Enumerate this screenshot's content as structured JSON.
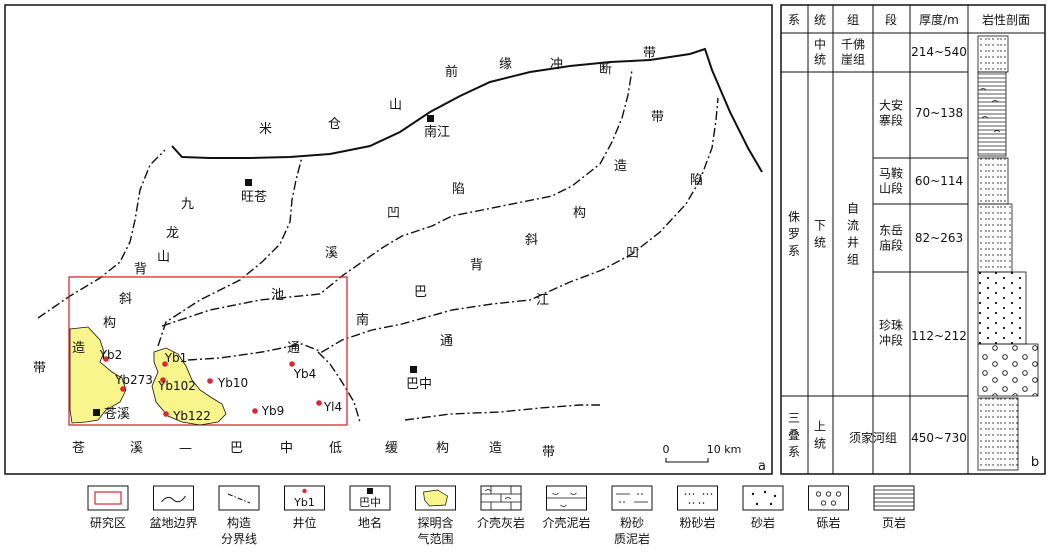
{
  "map": {
    "panel_letter": "a",
    "scale_zero": "0",
    "scale_label": "10 km",
    "towns": [
      "南江",
      "旺苍",
      "巴中",
      "苍溪"
    ],
    "region_chars": {
      "micang": [
        "米",
        "仓",
        "山",
        "前",
        "缘",
        "冲",
        "断",
        "带"
      ],
      "jiulong": [
        "九",
        "龙",
        "山",
        "背",
        "斜",
        "构",
        "造",
        "带"
      ],
      "tongnan": [
        "通",
        "南",
        "巴",
        "背",
        "斜",
        "构",
        "造"
      ],
      "chuanbei": [
        "陷",
        "凹",
        "溪",
        "池"
      ],
      "jiangdai": [
        "带",
        "陷",
        "凹",
        "江"
      ],
      "dibu": [
        "苍",
        "溪",
        "—",
        "巴",
        "中",
        "低",
        "缓",
        "构",
        "造",
        "带"
      ]
    },
    "wells": [
      "Yb2",
      "Yb273",
      "Yb1",
      "Yb102",
      "Yb10",
      "Yb122",
      "Yb9",
      "Yb4",
      "Yl4"
    ]
  },
  "column": {
    "panel_letter": "b",
    "headers": [
      "系",
      "统",
      "组",
      "段",
      "厚度/m",
      "岩性剖面"
    ],
    "rows": [
      {
        "system": "",
        "series": "中统",
        "formation": "千佛崖组",
        "member": "",
        "thickness": "214~540"
      },
      {
        "system": "侏罗系",
        "series": "下统",
        "formation": "自流井组",
        "member": "大安寨段",
        "thickness": "70~138"
      },
      {
        "system": "",
        "series": "",
        "formation": "",
        "member": "马鞍山段",
        "thickness": "60~114"
      },
      {
        "system": "",
        "series": "",
        "formation": "",
        "member": "东岳庙段",
        "thickness": "82~263"
      },
      {
        "system": "",
        "series": "",
        "formation": "",
        "member": "珍珠冲段",
        "thickness": "112~212"
      },
      {
        "system": "三叠系",
        "series": "上统",
        "formation": "须家河组",
        "member": "",
        "thickness": "450~730"
      }
    ]
  },
  "legend": {
    "items": [
      {
        "label": "研究区",
        "label2": ""
      },
      {
        "label": "盆地边界",
        "label2": ""
      },
      {
        "label": "构造",
        "label2": "分界线"
      },
      {
        "label": "井位",
        "label2": "",
        "sample": "Yb1"
      },
      {
        "label": "地名",
        "label2": "",
        "sample": "巴中"
      },
      {
        "label": "探明含",
        "label2": "气范围"
      },
      {
        "label": "介壳灰岩",
        "label2": ""
      },
      {
        "label": "介壳泥岩",
        "label2": ""
      },
      {
        "label": "粉砂",
        "label2": "质泥岩"
      },
      {
        "label": "粉砂岩",
        "label2": ""
      },
      {
        "label": "砂岩",
        "label2": ""
      },
      {
        "label": "砾岩",
        "label2": ""
      },
      {
        "label": "页岩",
        "label2": ""
      }
    ]
  },
  "colors": {
    "gas": "#f7f58c",
    "study_area": "#d9282f",
    "well": "#d9282f",
    "line": "#111111"
  }
}
